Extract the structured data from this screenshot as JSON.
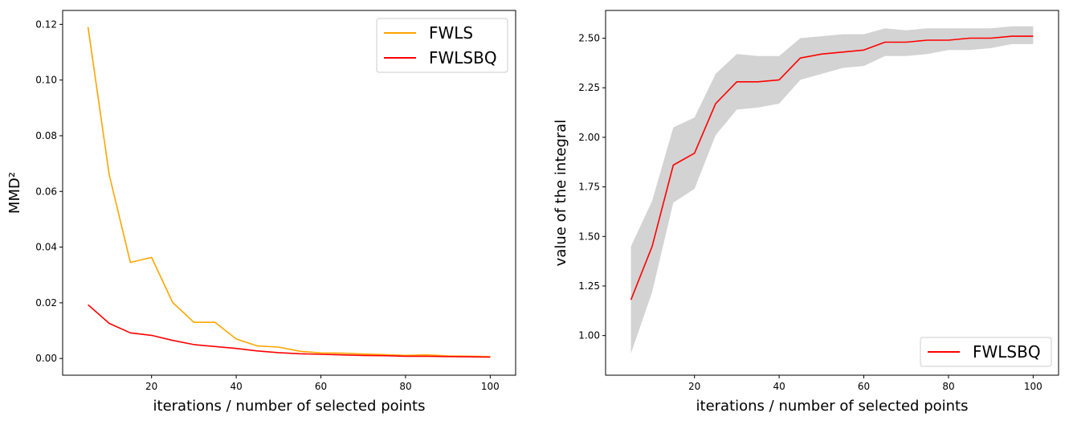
{
  "chart_data": [
    {
      "type": "line",
      "xlabel": "iterations / number of selected points",
      "ylabel": "MMD²",
      "xlim": [
        -1.0,
        106.0
      ],
      "ylim": [
        -0.006,
        0.125
      ],
      "xticks": [
        20,
        40,
        60,
        80,
        100
      ],
      "xtick_labels": [
        "20",
        "40",
        "60",
        "80",
        "100"
      ],
      "yticks": [
        0.0,
        0.02,
        0.04,
        0.06,
        0.08,
        0.1,
        0.12
      ],
      "ytick_labels": [
        "0.00",
        "0.02",
        "0.04",
        "0.06",
        "0.08",
        "0.10",
        "0.12"
      ],
      "legend_position": "top-right",
      "x": [
        5,
        10,
        15,
        20,
        25,
        30,
        35,
        40,
        45,
        50,
        55,
        60,
        65,
        70,
        75,
        80,
        85,
        90,
        95,
        100
      ],
      "series": [
        {
          "name": "FWLS",
          "color": "#ffa500",
          "values": [
            0.119,
            0.066,
            0.0345,
            0.0363,
            0.0201,
            0.013,
            0.013,
            0.007,
            0.0045,
            0.0041,
            0.0026,
            0.002,
            0.0019,
            0.0016,
            0.0014,
            0.0011,
            0.0013,
            0.0009,
            0.0008,
            0.0007
          ]
        },
        {
          "name": "FWLSBQ",
          "color": "#ff0000",
          "values": [
            0.0193,
            0.0126,
            0.0092,
            0.0083,
            0.0065,
            0.005,
            0.0043,
            0.0036,
            0.0027,
            0.0021,
            0.0017,
            0.0015,
            0.0013,
            0.0011,
            0.001,
            0.0008,
            0.0008,
            0.0007,
            0.0006,
            0.0005
          ]
        }
      ]
    },
    {
      "type": "area",
      "xlabel": "iterations / number of selected points",
      "ylabel": "value of the integral",
      "xlim": [
        -1.0,
        106.0
      ],
      "ylim": [
        0.8,
        2.64
      ],
      "xticks": [
        20,
        40,
        60,
        80,
        100
      ],
      "xtick_labels": [
        "20",
        "40",
        "60",
        "80",
        "100"
      ],
      "yticks": [
        1.0,
        1.25,
        1.5,
        1.75,
        2.0,
        2.25,
        2.5
      ],
      "ytick_labels": [
        "1.00",
        "1.25",
        "1.50",
        "1.75",
        "2.00",
        "2.25",
        "2.50"
      ],
      "legend_position": "bottom-right",
      "x": [
        5,
        10,
        15,
        20,
        25,
        30,
        35,
        40,
        45,
        50,
        55,
        60,
        65,
        70,
        75,
        80,
        85,
        90,
        95,
        100
      ],
      "series": [
        {
          "name": "FWLSBQ",
          "color": "#ff0000",
          "values": [
            1.18,
            1.45,
            1.86,
            1.92,
            2.17,
            2.28,
            2.28,
            2.29,
            2.4,
            2.42,
            2.43,
            2.44,
            2.48,
            2.48,
            2.49,
            2.49,
            2.5,
            2.5,
            2.51,
            2.51
          ]
        }
      ],
      "band": {
        "color": "#d3d3d3",
        "upper": [
          1.45,
          1.68,
          2.05,
          2.1,
          2.32,
          2.42,
          2.41,
          2.41,
          2.5,
          2.51,
          2.52,
          2.52,
          2.55,
          2.54,
          2.55,
          2.55,
          2.55,
          2.55,
          2.56,
          2.56
        ],
        "lower": [
          0.91,
          1.22,
          1.67,
          1.74,
          2.01,
          2.14,
          2.15,
          2.17,
          2.29,
          2.32,
          2.35,
          2.36,
          2.41,
          2.41,
          2.42,
          2.44,
          2.44,
          2.45,
          2.47,
          2.47
        ]
      }
    }
  ]
}
